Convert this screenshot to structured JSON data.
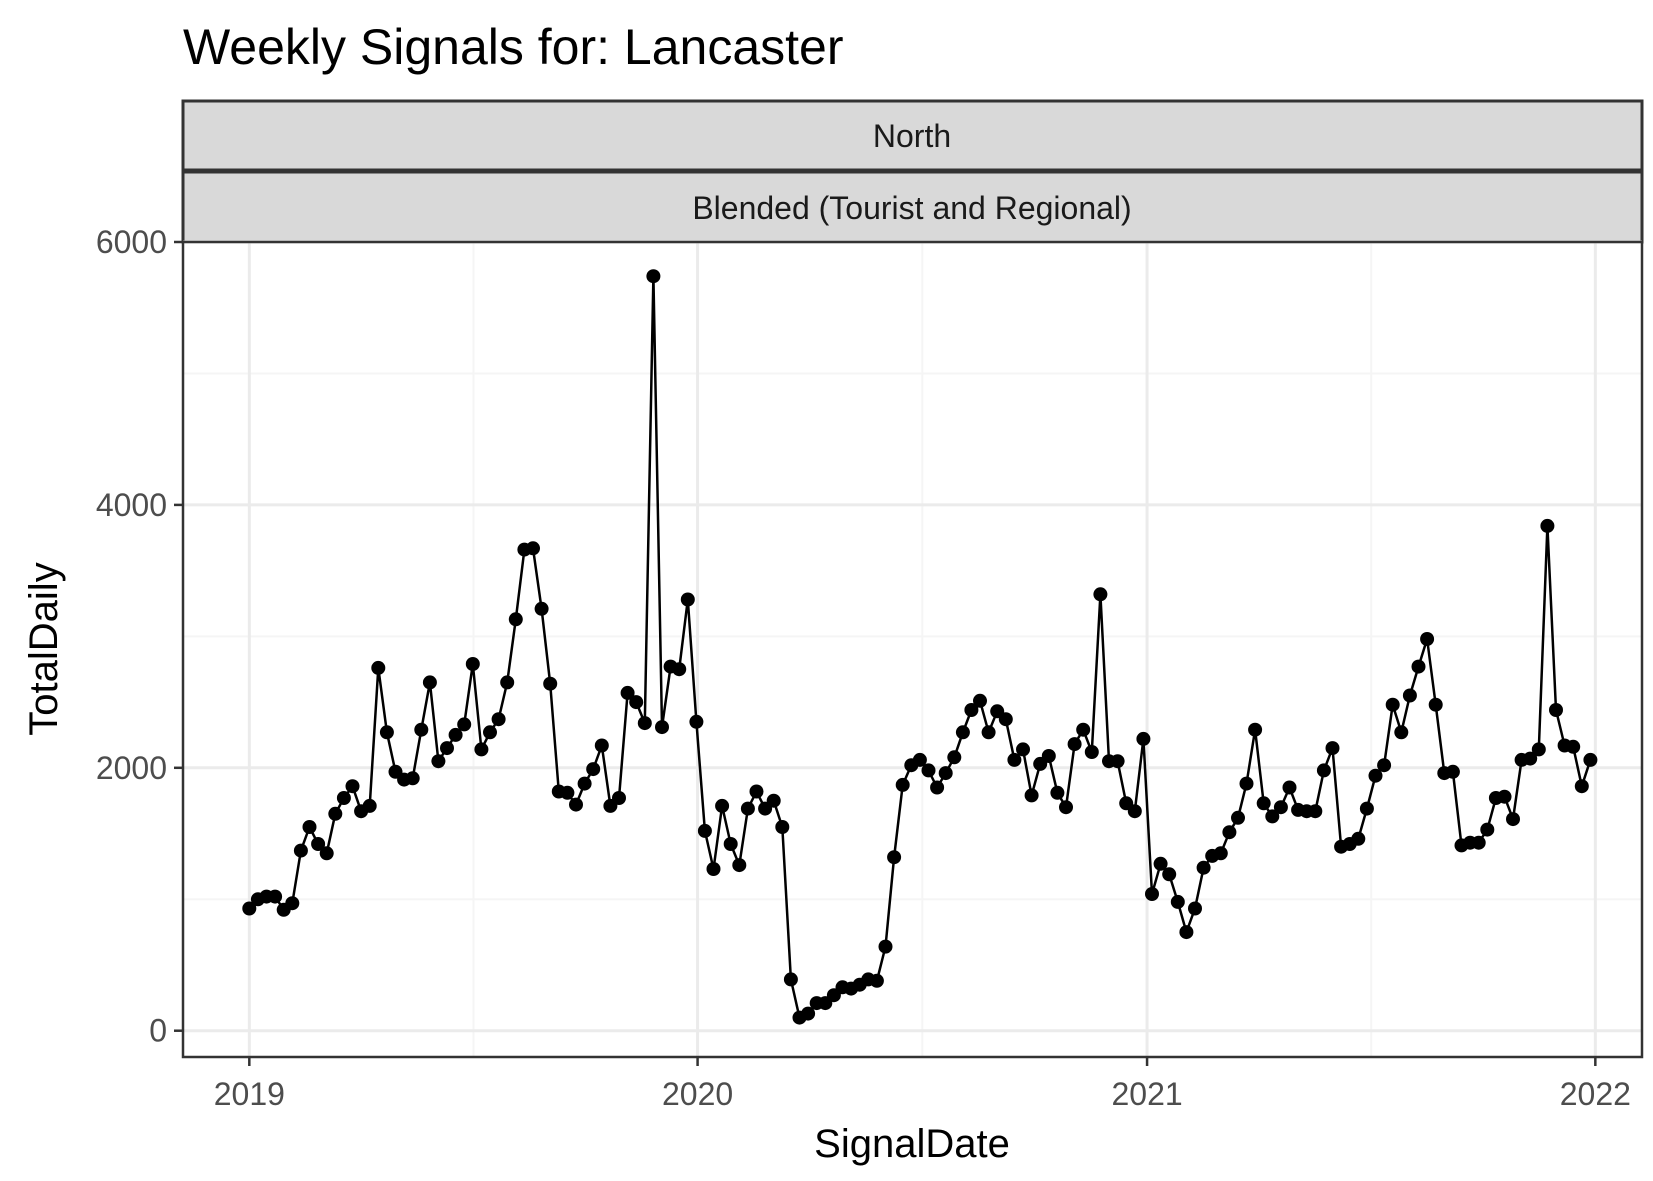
{
  "chart_data": {
    "type": "line",
    "title": "Weekly Signals for: Lancaster",
    "facet_labels": [
      "North",
      "Blended (Tourist and Regional)"
    ],
    "xlabel": "SignalDate",
    "ylabel": "TotalDaily",
    "x_ticks": [
      "2019",
      "2020",
      "2021",
      "2022"
    ],
    "y_ticks": [
      "0",
      "2000",
      "4000",
      "6000"
    ],
    "xlim": [
      "2018-11-08",
      "2022-02-08"
    ],
    "ylim": [
      -200,
      6000
    ],
    "grid": true,
    "colors": {
      "line": "#000000",
      "point": "#000000",
      "panel_border": "#333333",
      "strip_fill": "#d9d9d9",
      "grid_major": "#ebebeb",
      "grid_minor": "#f5f5f5"
    },
    "series": [
      {
        "x": [
          "2019-01-01",
          "2019-01-08",
          "2019-01-15",
          "2019-01-22",
          "2019-01-29",
          "2019-02-05",
          "2019-02-12",
          "2019-02-19",
          "2019-02-26",
          "2019-03-05",
          "2019-03-12",
          "2019-03-19",
          "2019-03-26",
          "2019-04-02",
          "2019-04-09",
          "2019-04-16",
          "2019-04-23",
          "2019-04-30",
          "2019-05-07",
          "2019-05-14",
          "2019-05-21",
          "2019-05-28",
          "2019-06-04",
          "2019-06-11",
          "2019-06-18",
          "2019-06-25",
          "2019-07-02",
          "2019-07-09",
          "2019-07-16",
          "2019-07-23",
          "2019-07-30",
          "2019-08-06",
          "2019-08-13",
          "2019-08-20",
          "2019-08-27",
          "2019-09-03",
          "2019-09-10",
          "2019-09-17",
          "2019-09-24",
          "2019-10-01",
          "2019-10-08",
          "2019-10-15",
          "2019-10-22",
          "2019-10-29",
          "2019-11-05",
          "2019-11-12",
          "2019-11-19",
          "2019-11-26",
          "2019-12-03",
          "2019-12-10",
          "2019-12-17",
          "2019-12-24",
          "2019-12-31",
          "2020-01-07",
          "2020-01-14",
          "2020-01-21",
          "2020-01-28",
          "2020-02-04",
          "2020-02-11",
          "2020-02-18",
          "2020-02-25",
          "2020-03-03",
          "2020-03-10",
          "2020-03-17",
          "2020-03-24",
          "2020-03-31",
          "2020-04-07",
          "2020-04-14",
          "2020-04-21",
          "2020-04-28",
          "2020-05-05",
          "2020-05-12",
          "2020-05-19",
          "2020-05-26",
          "2020-06-02",
          "2020-06-09",
          "2020-06-16",
          "2020-06-23",
          "2020-06-30",
          "2020-07-07",
          "2020-07-14",
          "2020-07-21",
          "2020-07-28",
          "2020-08-04",
          "2020-08-11",
          "2020-08-18",
          "2020-08-25",
          "2020-09-01",
          "2020-09-08",
          "2020-09-15",
          "2020-09-22",
          "2020-09-29",
          "2020-10-06",
          "2020-10-13",
          "2020-10-20",
          "2020-10-27",
          "2020-11-03",
          "2020-11-10",
          "2020-11-17",
          "2020-11-24",
          "2020-12-01",
          "2020-12-08",
          "2020-12-15",
          "2020-12-22",
          "2020-12-29",
          "2021-01-05",
          "2021-01-12",
          "2021-01-19",
          "2021-01-26",
          "2021-02-02",
          "2021-02-09",
          "2021-02-16",
          "2021-02-23",
          "2021-03-02",
          "2021-03-09",
          "2021-03-16",
          "2021-03-23",
          "2021-03-30",
          "2021-04-06",
          "2021-04-13",
          "2021-04-20",
          "2021-04-27",
          "2021-05-04",
          "2021-05-11",
          "2021-05-18",
          "2021-05-25",
          "2021-06-01",
          "2021-06-08",
          "2021-06-15",
          "2021-06-22",
          "2021-06-29",
          "2021-07-06",
          "2021-07-13",
          "2021-07-20",
          "2021-07-27",
          "2021-08-03",
          "2021-08-10",
          "2021-08-17",
          "2021-08-24",
          "2021-08-31",
          "2021-09-07",
          "2021-09-14",
          "2021-09-21",
          "2021-09-28",
          "2021-10-05",
          "2021-10-12",
          "2021-10-19",
          "2021-10-26",
          "2021-11-02",
          "2021-11-09",
          "2021-11-16",
          "2021-11-23",
          "2021-11-30",
          "2021-12-07",
          "2021-12-14",
          "2021-12-21",
          "2021-12-28"
        ],
        "values": [
          930,
          1000,
          1020,
          1020,
          920,
          970,
          1370,
          1550,
          1420,
          1350,
          1650,
          1770,
          1860,
          1670,
          1710,
          2760,
          2270,
          1970,
          1910,
          1920,
          2290,
          2650,
          2050,
          2150,
          2250,
          2330,
          2790,
          2140,
          2270,
          2370,
          2650,
          3130,
          3660,
          3670,
          3210,
          2640,
          1820,
          1810,
          1720,
          1880,
          1990,
          2170,
          1710,
          1770,
          2570,
          2500,
          2340,
          5740,
          2310,
          2770,
          2750,
          3280,
          2350,
          1520,
          1230,
          1710,
          1420,
          1260,
          1690,
          1820,
          1690,
          1750,
          1550,
          390,
          100,
          130,
          210,
          210,
          270,
          330,
          320,
          350,
          390,
          380,
          640,
          1320,
          1870,
          2020,
          2060,
          1980,
          1850,
          1960,
          2080,
          2270,
          2440,
          2510,
          2270,
          2430,
          2370,
          2060,
          2140,
          1790,
          2030,
          2090,
          1810,
          1700,
          2180,
          2290,
          2120,
          3320,
          2050,
          2050,
          1730,
          1670,
          2220,
          1040,
          1270,
          1190,
          980,
          750,
          930,
          1240,
          1330,
          1350,
          1510,
          1620,
          1880,
          2290,
          1730,
          1630,
          1700,
          1850,
          1680,
          1670,
          1670,
          1980,
          2150,
          1400,
          1420,
          1460,
          1690,
          1940,
          2020,
          2480,
          2270,
          2550,
          2770,
          2980,
          2480,
          1960,
          1970,
          1410,
          1430,
          1430,
          1530,
          1770,
          1780,
          1610,
          2060,
          2070,
          2140,
          3840,
          2440,
          2170,
          2160,
          1860,
          2060
        ]
      }
    ]
  }
}
